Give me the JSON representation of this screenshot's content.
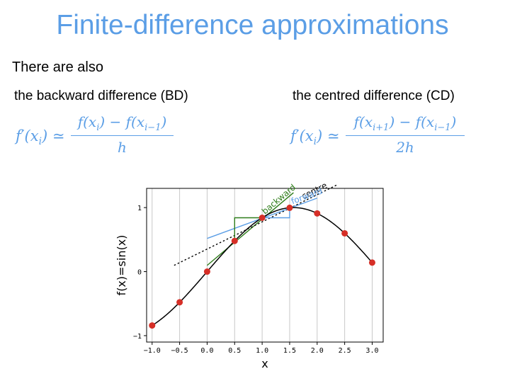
{
  "slide": {
    "title": "Finite-difference approximations",
    "intro": "There are also",
    "bd_label": "the backward difference (BD)",
    "cd_label": "the centred difference (CD)",
    "bd_formula": {
      "lhs": "f′(x",
      "lhs_sub": "i",
      "lhs_end": ") ≃",
      "num_a": "f(x",
      "num_a_sub": "i",
      "num_mid": ") − f(x",
      "num_b_sub": "i−1",
      "num_end": ")",
      "den": "h"
    },
    "cd_formula": {
      "lhs": "f′(x",
      "lhs_sub": "i",
      "lhs_end": ") ≃",
      "num_a": "f(x",
      "num_a_sub": "i+1",
      "num_mid": ") − f(x",
      "num_b_sub": "i−1",
      "num_end": ")",
      "den": "2h"
    }
  },
  "chart_data": {
    "type": "line",
    "xlabel": "x",
    "ylabel": "f(x)=sin(x)",
    "xlim": [
      -1.1,
      3.2
    ],
    "ylim": [
      -1.1,
      1.3
    ],
    "xticks": [
      -1.0,
      -0.5,
      0.0,
      0.5,
      1.0,
      1.5,
      2.0,
      2.5,
      3.0
    ],
    "xtick_labels": [
      "−1.0",
      "−0.5",
      "0.0",
      "0.5",
      "1.0",
      "1.5",
      "2.0",
      "2.5",
      "3.0"
    ],
    "yticks": [
      -1,
      0,
      1
    ],
    "ytick_labels": [
      "−1",
      "0",
      "1"
    ],
    "grid": "vertical",
    "curve": {
      "function": "sin",
      "x_range": [
        -1.0,
        3.0
      ],
      "color": "#000000"
    },
    "points": {
      "x": [
        -1.0,
        -0.5,
        0.0,
        0.5,
        1.0,
        1.5,
        2.0,
        2.5,
        3.0
      ],
      "y": [
        -0.841,
        -0.479,
        0.0,
        0.479,
        0.841,
        0.997,
        0.909,
        0.598,
        0.141
      ],
      "color": "#d62f27"
    },
    "lines": [
      {
        "label": "backward",
        "x": [
          0.0,
          1.57
        ],
        "y": [
          0.097,
          1.233
        ],
        "color": "#2e7d1a",
        "style": "solid"
      },
      {
        "label": "centre",
        "x": [
          -0.6,
          2.35
        ],
        "y": [
          0.098,
          1.35
        ],
        "color": "#000000",
        "style": "dotted"
      },
      {
        "label": "forward",
        "x": [
          0.0,
          2.0
        ],
        "y": [
          0.518,
          1.148
        ],
        "color": "#5b9ee6",
        "style": "solid"
      }
    ],
    "bd_triangle": {
      "x": [
        0.5,
        1.0
      ],
      "y": [
        0.479,
        0.841
      ],
      "color": "#2e7d1a"
    },
    "fd_triangle": {
      "x": [
        1.0,
        1.5
      ],
      "y": [
        0.841,
        0.997
      ],
      "color": "#5b9ee6"
    },
    "annotations": [
      {
        "text": "backward",
        "color": "#2e7d1a"
      },
      {
        "text": "centre",
        "color": "#000000"
      },
      {
        "text": "forward",
        "color": "#5b9ee6"
      }
    ]
  }
}
